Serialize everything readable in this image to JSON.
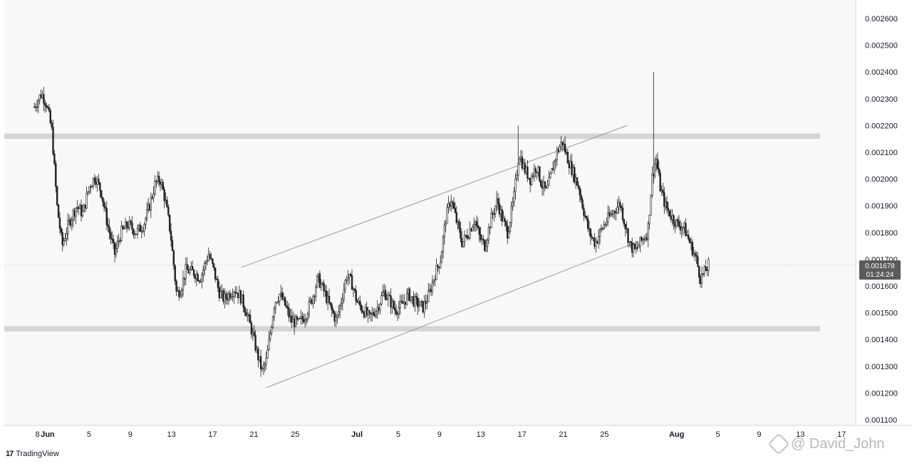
{
  "chart_data": {
    "type": "candlestick",
    "platform": "TradingView",
    "watermark": "@ David_John",
    "y_axis": {
      "min": 0.00105,
      "max": 0.00268,
      "ticks": [
        "0.002600",
        "0.002500",
        "0.002400",
        "0.002300",
        "0.002200",
        "0.002100",
        "0.002000",
        "0.001900",
        "0.001800",
        "0.001700",
        "0.001600",
        "0.001500",
        "0.001400",
        "0.001300",
        "0.001200",
        "0.001100"
      ]
    },
    "x_axis": {
      "ticks": [
        {
          "label": "8",
          "day": -1
        },
        {
          "label": "Jun",
          "day": 0
        },
        {
          "label": "5",
          "day": 4
        },
        {
          "label": "9",
          "day": 8
        },
        {
          "label": "13",
          "day": 12
        },
        {
          "label": "17",
          "day": 16
        },
        {
          "label": "21",
          "day": 20
        },
        {
          "label": "25",
          "day": 24
        },
        {
          "label": "Jul",
          "day": 30
        },
        {
          "label": "5",
          "day": 34
        },
        {
          "label": "9",
          "day": 38
        },
        {
          "label": "13",
          "day": 42
        },
        {
          "label": "17",
          "day": 46
        },
        {
          "label": "21",
          "day": 50
        },
        {
          "label": "25",
          "day": 54
        },
        {
          "label": "Aug",
          "day": 61
        },
        {
          "label": "5",
          "day": 65
        },
        {
          "label": "9",
          "day": 69
        },
        {
          "label": "13",
          "day": 73
        },
        {
          "label": "17",
          "day": 77
        }
      ]
    },
    "last_price": {
      "value": "0.001678",
      "countdown": "01:24:24",
      "price": 0.001678
    },
    "zones": [
      {
        "name": "resistance",
        "from": 0.00215,
        "to": 0.00217
      },
      {
        "name": "support",
        "from": 0.00143,
        "to": 0.00145
      }
    ],
    "channel": {
      "upper": {
        "from": {
          "day": 18.8,
          "price": 0.00167
        },
        "to": {
          "day": 56.2,
          "price": 0.0022
        }
      },
      "lower": {
        "from": {
          "day": 21.2,
          "price": 0.00122
        },
        "to": {
          "day": 58.2,
          "price": 0.00178
        }
      }
    },
    "price_path": [
      [
        -1.3,
        0.00227
      ],
      [
        -0.6,
        0.00232
      ],
      [
        -0.1,
        0.00228
      ],
      [
        0.4,
        0.00218
      ],
      [
        0.9,
        0.0019
      ],
      [
        1.4,
        0.00175
      ],
      [
        2.0,
        0.00183
      ],
      [
        2.8,
        0.0019
      ],
      [
        3.4,
        0.00187
      ],
      [
        4.0,
        0.00197
      ],
      [
        4.6,
        0.00201
      ],
      [
        5.2,
        0.00195
      ],
      [
        5.8,
        0.00183
      ],
      [
        6.5,
        0.00172
      ],
      [
        7.1,
        0.0018
      ],
      [
        7.8,
        0.00183
      ],
      [
        8.6,
        0.0018
      ],
      [
        9.3,
        0.00183
      ],
      [
        9.8,
        0.00189
      ],
      [
        10.4,
        0.00198
      ],
      [
        10.9,
        0.002
      ],
      [
        11.4,
        0.00192
      ],
      [
        11.9,
        0.0018
      ],
      [
        12.5,
        0.00157
      ],
      [
        12.9,
        0.00159
      ],
      [
        13.4,
        0.00166
      ],
      [
        14.2,
        0.00165
      ],
      [
        14.8,
        0.00163
      ],
      [
        15.6,
        0.00172
      ],
      [
        16.1,
        0.00166
      ],
      [
        16.6,
        0.00158
      ],
      [
        17.1,
        0.00155
      ],
      [
        17.6,
        0.00157
      ],
      [
        18.1,
        0.00159
      ],
      [
        18.7,
        0.00156
      ],
      [
        19.3,
        0.0015
      ],
      [
        19.8,
        0.00143
      ],
      [
        20.3,
        0.00135
      ],
      [
        20.8,
        0.00128
      ],
      [
        21.2,
        0.00132
      ],
      [
        21.6,
        0.00143
      ],
      [
        22.0,
        0.00154
      ],
      [
        22.5,
        0.00157
      ],
      [
        23.0,
        0.00153
      ],
      [
        23.6,
        0.00147
      ],
      [
        24.3,
        0.00146
      ],
      [
        25.0,
        0.00149
      ],
      [
        25.7,
        0.00156
      ],
      [
        26.2,
        0.00163
      ],
      [
        26.8,
        0.00158
      ],
      [
        27.4,
        0.00152
      ],
      [
        28.0,
        0.00147
      ],
      [
        28.5,
        0.00155
      ],
      [
        29.0,
        0.00164
      ],
      [
        29.5,
        0.00161
      ],
      [
        30.0,
        0.00154
      ],
      [
        30.6,
        0.00151
      ],
      [
        31.2,
        0.00148
      ],
      [
        32.0,
        0.00152
      ],
      [
        32.6,
        0.00158
      ],
      [
        33.1,
        0.00155
      ],
      [
        33.7,
        0.00151
      ],
      [
        34.4,
        0.00153
      ],
      [
        35.0,
        0.00157
      ],
      [
        35.6,
        0.00154
      ],
      [
        36.4,
        0.00152
      ],
      [
        37.0,
        0.00157
      ],
      [
        37.6,
        0.00165
      ],
      [
        38.1,
        0.0017
      ],
      [
        38.6,
        0.00185
      ],
      [
        39.1,
        0.00193
      ],
      [
        39.6,
        0.00185
      ],
      [
        40.2,
        0.00176
      ],
      [
        40.8,
        0.0018
      ],
      [
        41.4,
        0.00185
      ],
      [
        41.9,
        0.00178
      ],
      [
        42.4,
        0.00175
      ],
      [
        43.0,
        0.00185
      ],
      [
        43.6,
        0.00192
      ],
      [
        44.1,
        0.00185
      ],
      [
        44.6,
        0.0018
      ],
      [
        45.2,
        0.00192
      ],
      [
        45.7,
        0.0021
      ],
      [
        46.2,
        0.00204
      ],
      [
        46.8,
        0.002
      ],
      [
        47.4,
        0.00205
      ],
      [
        47.9,
        0.00198
      ],
      [
        48.4,
        0.00195
      ],
      [
        48.9,
        0.00203
      ],
      [
        49.4,
        0.0021
      ],
      [
        49.9,
        0.00214
      ],
      [
        50.4,
        0.00208
      ],
      [
        50.9,
        0.00203
      ],
      [
        51.5,
        0.00197
      ],
      [
        52.0,
        0.00188
      ],
      [
        52.5,
        0.0018
      ],
      [
        53.1,
        0.00176
      ],
      [
        53.7,
        0.00181
      ],
      [
        54.3,
        0.00185
      ],
      [
        54.9,
        0.00188
      ],
      [
        55.5,
        0.00191
      ],
      [
        56.0,
        0.00183
      ],
      [
        56.5,
        0.00175
      ],
      [
        57.0,
        0.00173
      ],
      [
        57.6,
        0.00177
      ],
      [
        58.2,
        0.0018
      ],
      [
        58.6,
        0.002
      ],
      [
        59.0,
        0.00208
      ],
      [
        59.4,
        0.00197
      ],
      [
        59.9,
        0.0019
      ],
      [
        60.5,
        0.00186
      ],
      [
        61.1,
        0.00183
      ],
      [
        61.7,
        0.00182
      ],
      [
        62.3,
        0.00176
      ],
      [
        62.9,
        0.0017
      ],
      [
        63.3,
        0.00163
      ],
      [
        63.7,
        0.00165
      ],
      [
        64.1,
        0.00168
      ]
    ],
    "spikes": [
      [
        45.6,
        0.0022
      ],
      [
        58.7,
        0.0024
      ]
    ]
  }
}
